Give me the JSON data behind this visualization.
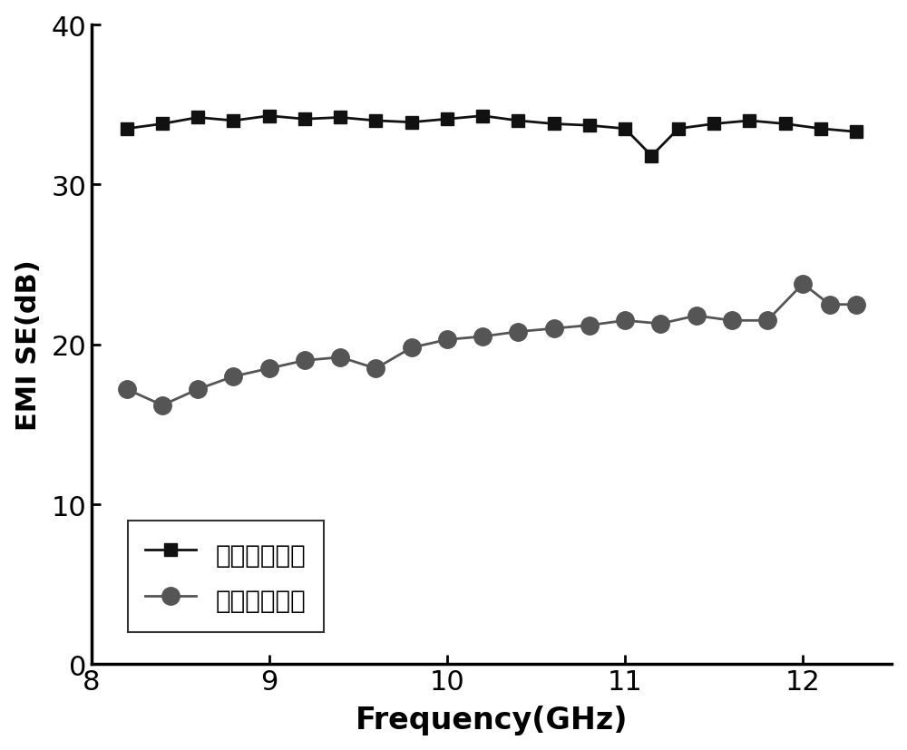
{
  "series1_label": "平行磁场方向",
  "series2_label": "垂直磁场取向",
  "series1_x": [
    8.2,
    8.4,
    8.6,
    8.8,
    9.0,
    9.2,
    9.4,
    9.6,
    9.8,
    10.0,
    10.2,
    10.4,
    10.6,
    10.8,
    11.0,
    11.15,
    11.3,
    11.5,
    11.7,
    11.9,
    12.1,
    12.3
  ],
  "series1_y": [
    33.5,
    33.8,
    34.2,
    34.0,
    34.3,
    34.1,
    34.2,
    34.0,
    33.9,
    34.1,
    34.3,
    34.0,
    33.8,
    33.7,
    33.5,
    31.8,
    33.5,
    33.8,
    34.0,
    33.8,
    33.5,
    33.3
  ],
  "series2_x": [
    8.2,
    8.4,
    8.6,
    8.8,
    9.0,
    9.2,
    9.4,
    9.6,
    9.8,
    10.0,
    10.2,
    10.4,
    10.6,
    10.8,
    11.0,
    11.2,
    11.4,
    11.6,
    11.8,
    12.0,
    12.15,
    12.3
  ],
  "series2_y": [
    17.2,
    16.2,
    17.2,
    18.0,
    18.5,
    19.0,
    19.2,
    18.5,
    19.8,
    20.3,
    20.5,
    20.8,
    21.0,
    21.2,
    21.5,
    21.3,
    21.8,
    21.5,
    21.5,
    23.8,
    22.5,
    22.5
  ],
  "xlabel": "Frequency(GHz)",
  "ylabel": "EMI SE(dB)",
  "xlim": [
    8.0,
    12.5
  ],
  "ylim": [
    0,
    40
  ],
  "yticks": [
    0,
    10,
    20,
    30,
    40
  ],
  "xticks": [
    8,
    9,
    10,
    11,
    12
  ],
  "color1": "#111111",
  "color2": "#555555",
  "linewidth": 2.0,
  "markersize1": 10,
  "markersize2": 14,
  "xlabel_fontsize": 24,
  "ylabel_fontsize": 22,
  "tick_fontsize": 22,
  "legend_fontsize": 20
}
